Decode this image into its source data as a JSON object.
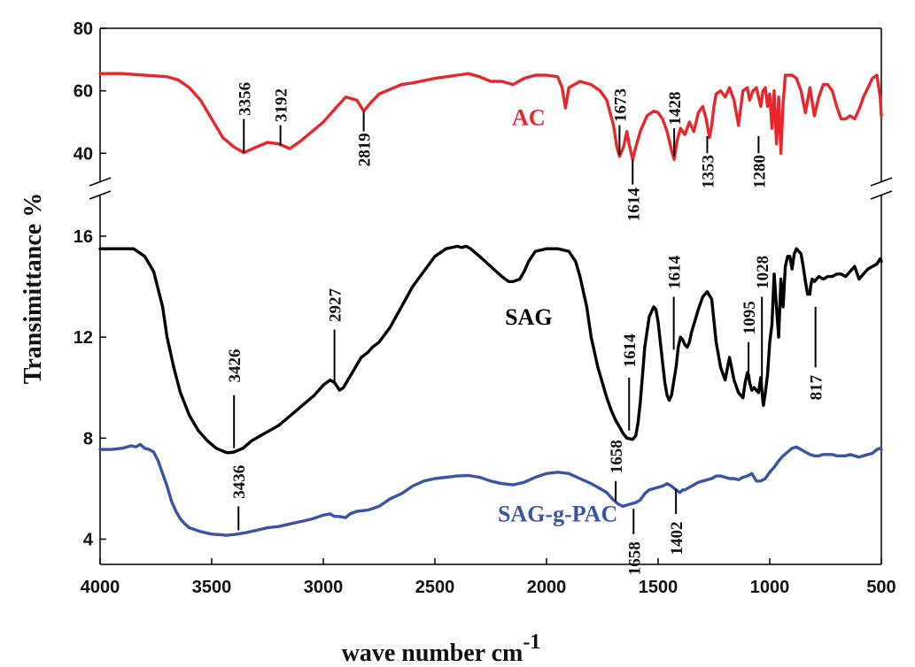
{
  "chart_data": {
    "type": "line",
    "title": "",
    "xlabel": "wave number  cm",
    "xlabel_superscript": "-1",
    "ylabel": "Transimittance %",
    "x_range": [
      4000,
      500
    ],
    "x_ticks": [
      4000,
      3500,
      3000,
      2500,
      2000,
      1500,
      1000,
      500
    ],
    "broken_y_axis": true,
    "upper_panel": {
      "ylim": [
        33,
        80
      ],
      "y_ticks": [
        40,
        60,
        80
      ]
    },
    "lower_panel": {
      "ylim": [
        3,
        17.4
      ],
      "y_ticks": [
        4,
        8,
        12,
        16
      ]
    },
    "legend": "inline labels",
    "colors": {
      "AC": "#e8262b",
      "SAG": "#000000",
      "SAG-g-PAC": "#3a55a4",
      "axis": "#000000"
    },
    "series": [
      {
        "name": "AC",
        "panel": "upper",
        "x": [
          4000,
          3900,
          3800,
          3700,
          3650,
          3600,
          3550,
          3500,
          3450,
          3400,
          3356,
          3300,
          3250,
          3200,
          3150,
          3100,
          3050,
          3000,
          2950,
          2900,
          2850,
          2819,
          2790,
          2750,
          2700,
          2650,
          2600,
          2500,
          2400,
          2350,
          2300,
          2250,
          2200,
          2150,
          2100,
          2050,
          2000,
          1950,
          1930,
          1915,
          1900,
          1850,
          1800,
          1760,
          1730,
          1700,
          1685,
          1673,
          1655,
          1640,
          1630,
          1614,
          1600,
          1580,
          1550,
          1520,
          1500,
          1480,
          1460,
          1440,
          1428,
          1415,
          1400,
          1380,
          1360,
          1340,
          1320,
          1300,
          1285,
          1270,
          1260,
          1250,
          1240,
          1220,
          1200,
          1180,
          1160,
          1140,
          1120,
          1100,
          1090,
          1075,
          1060,
          1050,
          1040,
          1030,
          1020,
          1010,
          1000,
          990,
          980,
          970,
          960,
          950,
          940,
          930,
          900,
          880,
          860,
          840,
          820,
          800,
          780,
          760,
          740,
          720,
          700,
          680,
          660,
          640,
          620,
          600,
          580,
          560,
          540,
          520,
          505,
          500
        ],
        "values": [
          65.5,
          65.5,
          65,
          64.5,
          63.5,
          61,
          57,
          51,
          45,
          42,
          40.2,
          42,
          43.5,
          43,
          41.5,
          44,
          47,
          50,
          54,
          58,
          57,
          53.5,
          56,
          59,
          60.5,
          62,
          62.5,
          64,
          65,
          65.5,
          64.5,
          63,
          63,
          62,
          64,
          65,
          65,
          64.5,
          61,
          54.5,
          61,
          63,
          62,
          60,
          57,
          49,
          42,
          39,
          42,
          47,
          43,
          38,
          42,
          47,
          52,
          53.5,
          53,
          51,
          47,
          41,
          38,
          44,
          48,
          46,
          50,
          47,
          53,
          55,
          51,
          45,
          49,
          55,
          59,
          60,
          58,
          61,
          57,
          49,
          60,
          61,
          57,
          60,
          61,
          58,
          55,
          60,
          61,
          55,
          59,
          48,
          60,
          43,
          58,
          40,
          56,
          65,
          65,
          64,
          60,
          53,
          61,
          52,
          58,
          62,
          62,
          60,
          55,
          51,
          51,
          52,
          51,
          54,
          58,
          61,
          64,
          65,
          58,
          52
        ]
      },
      {
        "name": "SAG",
        "panel": "lower",
        "x": [
          4000,
          3950,
          3900,
          3850,
          3800,
          3760,
          3720,
          3700,
          3670,
          3640,
          3600,
          3560,
          3520,
          3480,
          3440,
          3426,
          3400,
          3360,
          3320,
          3280,
          3240,
          3200,
          3160,
          3120,
          3080,
          3040,
          3000,
          2970,
          2950,
          2935,
          2927,
          2910,
          2890,
          2870,
          2850,
          2830,
          2800,
          2780,
          2750,
          2700,
          2650,
          2600,
          2550,
          2500,
          2450,
          2400,
          2380,
          2360,
          2340,
          2300,
          2250,
          2200,
          2170,
          2150,
          2120,
          2100,
          2080,
          2050,
          2000,
          1950,
          1900,
          1870,
          1850,
          1820,
          1800,
          1770,
          1750,
          1730,
          1710,
          1690,
          1670,
          1658,
          1640,
          1614,
          1600,
          1590,
          1580,
          1570,
          1560,
          1540,
          1520,
          1510,
          1500,
          1490,
          1480,
          1470,
          1460,
          1450,
          1440,
          1420,
          1410,
          1400,
          1390,
          1380,
          1370,
          1360,
          1350,
          1340,
          1320,
          1300,
          1280,
          1260,
          1240,
          1220,
          1200,
          1180,
          1160,
          1140,
          1120,
          1110,
          1100,
          1095,
          1090,
          1080,
          1070,
          1060,
          1050,
          1040,
          1030,
          1028,
          1020,
          1010,
          1000,
          990,
          980,
          970,
          960,
          950,
          940,
          930,
          920,
          910,
          900,
          890,
          880,
          870,
          860,
          850,
          840,
          830,
          820,
          817,
          810,
          800,
          790,
          780,
          760,
          740,
          720,
          700,
          680,
          660,
          640,
          620,
          600,
          580,
          560,
          540,
          520,
          505,
          500
        ],
        "values": [
          15.5,
          15.5,
          15.5,
          15.5,
          15.2,
          14.6,
          13.2,
          12,
          10.8,
          9.8,
          8.9,
          8.3,
          7.9,
          7.6,
          7.45,
          7.42,
          7.45,
          7.6,
          7.9,
          8.1,
          8.3,
          8.5,
          8.8,
          9.1,
          9.4,
          9.7,
          10.1,
          10.3,
          10.2,
          10,
          9.9,
          10,
          10.3,
          10.6,
          10.9,
          11.2,
          11.4,
          11.6,
          11.8,
          12.4,
          13.2,
          14,
          14.6,
          15.2,
          15.5,
          15.6,
          15.55,
          15.6,
          15.5,
          15.2,
          14.8,
          14.4,
          14.2,
          14.2,
          14.3,
          14.6,
          15,
          15.4,
          15.5,
          15.5,
          15.4,
          15,
          14.4,
          13.2,
          12,
          10.8,
          10.2,
          9.6,
          9.1,
          8.7,
          8.4,
          8.2,
          8.0,
          7.95,
          8.1,
          8.6,
          9.4,
          10.5,
          11.6,
          12.8,
          13.2,
          13.1,
          12.6,
          11.8,
          11,
          10.2,
          9.7,
          9.5,
          9.7,
          10.8,
          11.6,
          12,
          11.9,
          11.7,
          11.6,
          11.8,
          12.2,
          12.5,
          13.1,
          13.6,
          13.8,
          13.5,
          11.8,
          10.8,
          10.3,
          11.2,
          10.3,
          9.8,
          9.6,
          10.2,
          10.6,
          10.5,
          10.2,
          9.9,
          10,
          9.9,
          9.8,
          10.4,
          9.4,
          9.3,
          9.8,
          10.5,
          11.8,
          12.5,
          14.5,
          13.2,
          12,
          14.3,
          13.2,
          14.8,
          15.2,
          15.2,
          14.7,
          15.3,
          15.5,
          15.4,
          15.3,
          14.8,
          14.2,
          13.7,
          13.7,
          14,
          14.3,
          14.2,
          14.3,
          14.4,
          14.3,
          14.4,
          14.4,
          14.5,
          14.5,
          14.4,
          14.6,
          14.8,
          14.3,
          14.5,
          14.7,
          14.8,
          14.9,
          15.1,
          15.0
        ]
      },
      {
        "name": "SAG-g-PAC",
        "panel": "lower",
        "x": [
          4000,
          3950,
          3900,
          3860,
          3840,
          3820,
          3800,
          3780,
          3760,
          3740,
          3720,
          3700,
          3680,
          3660,
          3640,
          3620,
          3600,
          3550,
          3500,
          3450,
          3436,
          3400,
          3350,
          3300,
          3250,
          3200,
          3150,
          3100,
          3050,
          3000,
          2970,
          2950,
          2930,
          2900,
          2880,
          2850,
          2800,
          2750,
          2700,
          2650,
          2600,
          2550,
          2500,
          2450,
          2400,
          2350,
          2300,
          2250,
          2200,
          2150,
          2100,
          2050,
          2000,
          1950,
          1900,
          1850,
          1800,
          1760,
          1730,
          1700,
          1680,
          1658,
          1640,
          1620,
          1600,
          1580,
          1560,
          1540,
          1520,
          1500,
          1480,
          1460,
          1440,
          1420,
          1402,
          1390,
          1380,
          1360,
          1340,
          1320,
          1300,
          1280,
          1260,
          1240,
          1220,
          1200,
          1180,
          1160,
          1140,
          1120,
          1100,
          1080,
          1060,
          1040,
          1020,
          1000,
          980,
          960,
          940,
          920,
          900,
          880,
          860,
          840,
          820,
          800,
          780,
          760,
          740,
          720,
          700,
          680,
          660,
          640,
          620,
          600,
          580,
          560,
          540,
          520,
          505,
          500
        ],
        "values": [
          7.55,
          7.55,
          7.6,
          7.7,
          7.65,
          7.75,
          7.6,
          7.55,
          7.45,
          7.1,
          6.6,
          6.1,
          5.5,
          5.1,
          4.8,
          4.6,
          4.45,
          4.3,
          4.2,
          4.17,
          4.15,
          4.18,
          4.25,
          4.35,
          4.45,
          4.5,
          4.6,
          4.7,
          4.8,
          4.95,
          5.0,
          4.9,
          4.9,
          4.85,
          5.0,
          5.1,
          5.15,
          5.3,
          5.6,
          5.8,
          6.1,
          6.3,
          6.4,
          6.45,
          6.5,
          6.52,
          6.45,
          6.3,
          6.2,
          6.15,
          6.25,
          6.45,
          6.6,
          6.65,
          6.6,
          6.4,
          6.2,
          6.0,
          5.85,
          5.55,
          5.4,
          5.3,
          5.35,
          5.4,
          5.45,
          5.55,
          5.8,
          5.95,
          6.0,
          6.05,
          6.1,
          6.2,
          6.1,
          5.95,
          5.85,
          5.95,
          5.95,
          6.05,
          6.15,
          6.25,
          6.3,
          6.35,
          6.4,
          6.5,
          6.5,
          6.45,
          6.4,
          6.4,
          6.35,
          6.45,
          6.5,
          6.6,
          6.3,
          6.3,
          6.4,
          6.65,
          6.85,
          7.1,
          7.3,
          7.45,
          7.6,
          7.65,
          7.55,
          7.45,
          7.35,
          7.3,
          7.3,
          7.35,
          7.35,
          7.35,
          7.3,
          7.3,
          7.3,
          7.35,
          7.3,
          7.25,
          7.3,
          7.35,
          7.4,
          7.55,
          7.6,
          7.55
        ]
      }
    ],
    "annotations": [
      {
        "text": "3356",
        "series": "AC",
        "x": 3356,
        "tick": [
          40.2,
          51
        ],
        "label_y": 52
      },
      {
        "text": "3192",
        "series": "AC",
        "x": 3192,
        "tick": [
          42.5,
          49
        ],
        "label_y": 50
      },
      {
        "text": "2819",
        "series": "AC",
        "x": 2819,
        "tick": [
          47,
          53.5
        ],
        "label_y": 46.5
      },
      {
        "text": "1673",
        "series": "AC",
        "x": 1673,
        "tick": [
          39.5,
          49
        ],
        "label_y": 50
      },
      {
        "text": "1428",
        "series": "AC",
        "x": 1428,
        "tick": [
          39,
          48
        ],
        "label_y": 49
      },
      {
        "text": "1614",
        "series": "AC",
        "x": 1614,
        "tick": [
          30,
          38
        ],
        "label_y": 29
      },
      {
        "text": "1353",
        "series": "AC",
        "x": 1280,
        "tick": [
          40,
          45.5
        ],
        "label_y": 39.5
      },
      {
        "text": "1280",
        "series": "AC",
        "x": 1050,
        "tick": [
          40,
          45.5
        ],
        "label_y": 39.5
      },
      {
        "text": "3426",
        "series": "SAG",
        "x": 3400,
        "tick": [
          7.6,
          9.7
        ],
        "label_y": 10.2
      },
      {
        "text": "2927",
        "series": "SAG",
        "x": 2950,
        "tick": [
          10.2,
          12.3
        ],
        "label_y": 12.6
      },
      {
        "text": "1614",
        "series": "SAG",
        "x": 1630,
        "tick": [
          8.3,
          10.4
        ],
        "label_y": 10.8
      },
      {
        "text": "1614",
        "series": "SAG",
        "x": 1430,
        "tick": [
          11.5,
          13.6
        ],
        "label_y": 13.9
      },
      {
        "text": "1095",
        "series": "SAG",
        "x": 1095,
        "tick": [
          10.5,
          11.8
        ],
        "label_y": 12.1
      },
      {
        "text": "1028",
        "series": "SAG",
        "x": 1035,
        "tick": [
          9.8,
          13.6
        ],
        "label_y": 13.9
      },
      {
        "text": "817",
        "series": "SAG",
        "x": 795,
        "tick": [
          10.8,
          13.2
        ],
        "label_y": 10.5
      },
      {
        "text": "1658",
        "series": "SAG",
        "x": 1690,
        "tick": [
          5.5,
          6.3
        ],
        "label_y": 6.6
      },
      {
        "text": "3436",
        "series": "SAG-g-PAC",
        "x": 3380,
        "tick": [
          4.35,
          5.3
        ],
        "label_y": 5.6
      },
      {
        "text": "1658",
        "series": "SAG-g-PAC",
        "x": 1610,
        "tick": [
          4.2,
          5.2
        ],
        "label_y": 3.9
      },
      {
        "text": "1402",
        "series": "SAG-g-PAC",
        "x": 1420,
        "tick": [
          5.0,
          6.0
        ],
        "label_y": 4.7
      }
    ],
    "series_labels": [
      {
        "text": "AC",
        "series": "AC",
        "x": 2080,
        "y": 49
      },
      {
        "text": "SAG",
        "series": "SAG",
        "x": 2080,
        "y": 12.5
      },
      {
        "text": "SAG-g-PAC",
        "series": "SAG-g-PAC",
        "x": 1950,
        "y": 4.7
      }
    ]
  }
}
